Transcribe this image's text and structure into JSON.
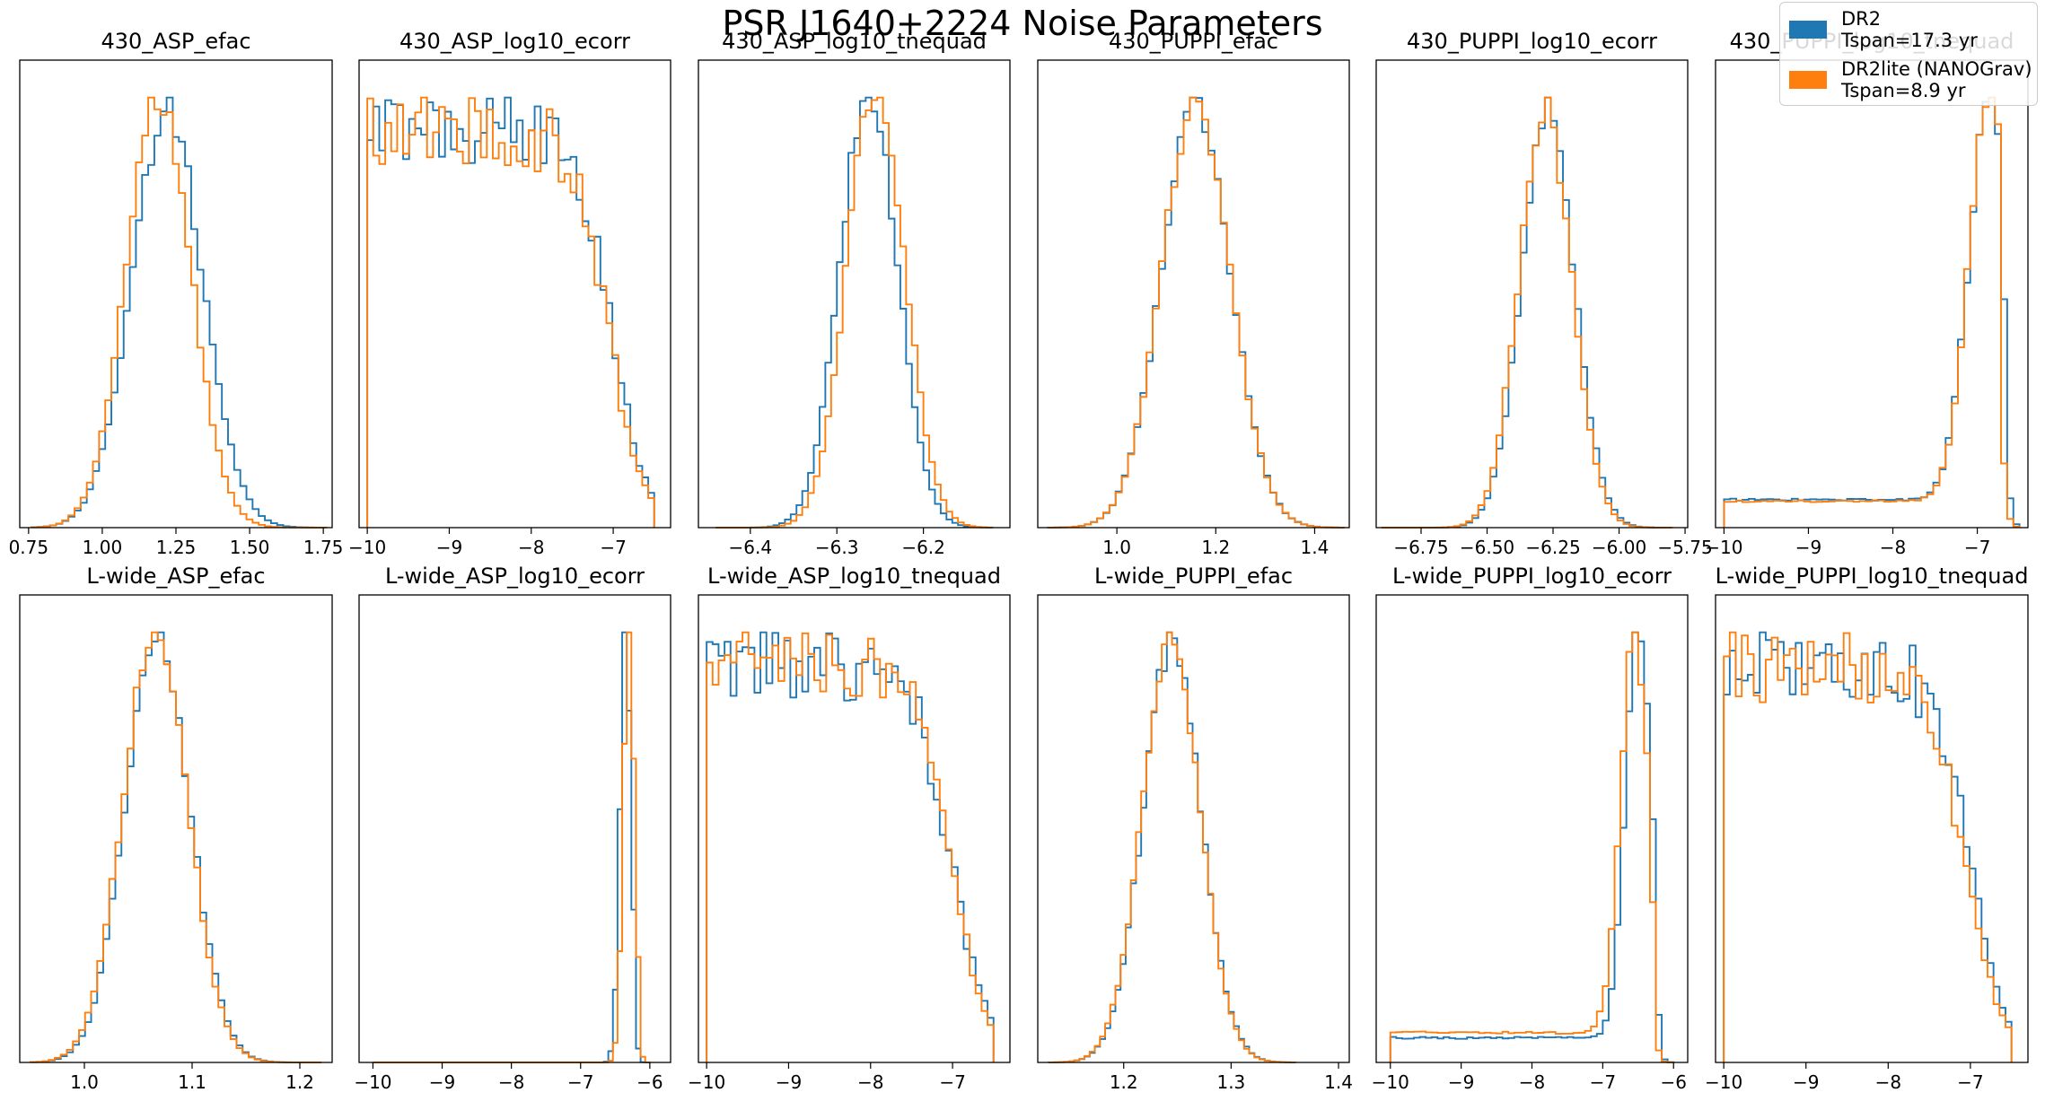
{
  "title": "PSR J1640+2224 Noise Parameters",
  "legend": [
    {
      "line1": "DR2",
      "line2": "Tspan=17.3 yr",
      "color": "#1f77b4"
    },
    {
      "line1": "DR2lite (NANOGrav)",
      "line2": "Tspan=8.9 yr",
      "color": "#ff7f0e"
    }
  ],
  "chart_data": [
    {
      "type": "histogram",
      "title": "430_ASP_efac",
      "xlim": [
        0.72,
        1.78
      ],
      "xticks": [
        0.75,
        1.0,
        1.25,
        1.5,
        1.75
      ],
      "xtick_labels": [
        "0.75",
        "1.00",
        "1.25",
        "1.50",
        "1.75"
      ],
      "shape": "gauss",
      "series": [
        {
          "name": "DR2",
          "center": 1.22,
          "width": 0.12,
          "bins": 48,
          "range": [
            0.76,
            1.76
          ]
        },
        {
          "name": "DR2lite (NANOGrav)",
          "center": 1.19,
          "width": 0.11,
          "bins": 48,
          "range": [
            0.76,
            1.76
          ]
        }
      ]
    },
    {
      "type": "histogram",
      "title": "430_ASP_log10_ecorr",
      "xlim": [
        -10.1,
        -6.3
      ],
      "xticks": [
        -10,
        -9,
        -8,
        -7
      ],
      "xtick_labels": [
        "−10",
        "−9",
        "−8",
        "−7"
      ],
      "shape": "plateau",
      "series": [
        {
          "name": "DR2",
          "low": -10,
          "cut": -7.0,
          "width": 0.2,
          "bins": 48,
          "range": [
            -10,
            -6.5
          ]
        },
        {
          "name": "DR2lite (NANOGrav)",
          "low": -10,
          "cut": -7.05,
          "width": 0.2,
          "bins": 48,
          "range": [
            -10,
            -6.5
          ]
        }
      ]
    },
    {
      "type": "histogram",
      "title": "430_ASP_log10_tnequad",
      "xlim": [
        -6.46,
        -6.1
      ],
      "xticks": [
        -6.4,
        -6.3,
        -6.2
      ],
      "xtick_labels": [
        "−6.4",
        "−6.3",
        "−6.2"
      ],
      "shape": "gauss",
      "series": [
        {
          "name": "DR2",
          "center": -6.263,
          "width": 0.033,
          "bins": 48,
          "range": [
            -6.44,
            -6.12
          ]
        },
        {
          "name": "DR2lite (NANOGrav)",
          "center": -6.255,
          "width": 0.033,
          "bins": 48,
          "range": [
            -6.44,
            -6.12
          ]
        }
      ]
    },
    {
      "type": "histogram",
      "title": "430_PUPPI_efac",
      "xlim": [
        0.84,
        1.47
      ],
      "xticks": [
        1.0,
        1.2,
        1.4
      ],
      "xtick_labels": [
        "1.0",
        "1.2",
        "1.4"
      ],
      "shape": "gauss",
      "series": [
        {
          "name": "DR2",
          "center": 1.16,
          "width": 0.07,
          "bins": 48,
          "range": [
            0.86,
            1.46
          ]
        },
        {
          "name": "DR2lite (NANOGrav)",
          "center": 1.16,
          "width": 0.07,
          "bins": 48,
          "range": [
            0.86,
            1.46
          ]
        }
      ]
    },
    {
      "type": "histogram",
      "title": "430_PUPPI_log10_ecorr",
      "xlim": [
        -6.92,
        -5.74
      ],
      "xticks": [
        -6.75,
        -6.5,
        -6.25,
        -6.0,
        -5.75
      ],
      "xtick_labels": [
        "−6.75",
        "−6.50",
        "−6.25",
        "−6.00",
        "−5.75"
      ],
      "shape": "gauss",
      "series": [
        {
          "name": "DR2",
          "center": -6.27,
          "width": 0.1,
          "bins": 48,
          "range": [
            -6.9,
            -5.8
          ]
        },
        {
          "name": "DR2lite (NANOGrav)",
          "center": -6.28,
          "width": 0.1,
          "bins": 48,
          "range": [
            -6.9,
            -5.8
          ]
        }
      ]
    },
    {
      "type": "histogram",
      "title": "430_PUPPI_log10_tnequad",
      "xlim": [
        -10.1,
        -6.4
      ],
      "xticks": [
        -10,
        -9,
        -8,
        -7
      ],
      "xtick_labels": [
        "−10",
        "−9",
        "−8",
        "−7"
      ],
      "shape": "rise",
      "series": [
        {
          "name": "DR2",
          "low": -10,
          "floor": 0.07,
          "peak": -6.85,
          "width": 0.25,
          "cut": -6.7,
          "bins": 48,
          "range": [
            -10,
            -6.5
          ]
        },
        {
          "name": "DR2lite (NANOGrav)",
          "low": -10,
          "floor": 0.065,
          "peak": -6.85,
          "width": 0.25,
          "cut": -6.75,
          "bins": 48,
          "range": [
            -10,
            -6.5
          ]
        }
      ]
    },
    {
      "type": "histogram",
      "title": "L-wide_ASP_efac",
      "xlim": [
        0.94,
        1.23
      ],
      "xticks": [
        1.0,
        1.1,
        1.2
      ],
      "xtick_labels": [
        "1.0",
        "1.1",
        "1.2"
      ],
      "shape": "gauss",
      "series": [
        {
          "name": "DR2",
          "center": 1.068,
          "width": 0.03,
          "bins": 48,
          "range": [
            0.95,
            1.22
          ]
        },
        {
          "name": "DR2lite (NANOGrav)",
          "center": 1.066,
          "width": 0.03,
          "bins": 48,
          "range": [
            0.95,
            1.22
          ]
        }
      ]
    },
    {
      "type": "histogram",
      "title": "L-wide_ASP_log10_ecorr",
      "xlim": [
        -10.2,
        -5.7
      ],
      "xticks": [
        -10,
        -9,
        -8,
        -7,
        -6
      ],
      "xtick_labels": [
        "−10",
        "−9",
        "−8",
        "−7",
        "−6"
      ],
      "shape": "spike",
      "series": [
        {
          "name": "DR2",
          "low": -10,
          "floor": 0,
          "peak": -6.35,
          "width": 0.08,
          "cut": -6.2,
          "bins": 60,
          "range": [
            -10,
            -6
          ]
        },
        {
          "name": "DR2lite (NANOGrav)",
          "low": -10,
          "floor": 0,
          "peak": -6.3,
          "width": 0.08,
          "cut": -6.15,
          "bins": 60,
          "range": [
            -10,
            -6
          ]
        }
      ]
    },
    {
      "type": "histogram",
      "title": "L-wide_ASP_log10_tnequad",
      "xlim": [
        -10.1,
        -6.3
      ],
      "xticks": [
        -10,
        -9,
        -8,
        -7
      ],
      "xtick_labels": [
        "−10",
        "−9",
        "−8",
        "−7"
      ],
      "shape": "plateau",
      "series": [
        {
          "name": "DR2",
          "low": -10,
          "cut": -7.0,
          "width": 0.22,
          "bins": 48,
          "range": [
            -10,
            -6.5
          ]
        },
        {
          "name": "DR2lite (NANOGrav)",
          "low": -10,
          "cut": -7.02,
          "width": 0.22,
          "bins": 48,
          "range": [
            -10,
            -6.5
          ]
        }
      ]
    },
    {
      "type": "histogram",
      "title": "L-wide_PUPPI_efac",
      "xlim": [
        1.12,
        1.41
      ],
      "xticks": [
        1.2,
        1.3,
        1.4
      ],
      "xtick_labels": [
        "1.2",
        "1.3",
        "1.4"
      ],
      "shape": "gauss",
      "series": [
        {
          "name": "DR2",
          "center": 1.245,
          "width": 0.027,
          "bins": 48,
          "range": [
            1.13,
            1.36
          ]
        },
        {
          "name": "DR2lite (NANOGrav)",
          "center": 1.244,
          "width": 0.027,
          "bins": 48,
          "range": [
            1.13,
            1.36
          ]
        }
      ]
    },
    {
      "type": "histogram",
      "title": "L-wide_PUPPI_log10_ecorr",
      "xlim": [
        -10.2,
        -5.8
      ],
      "xticks": [
        -10,
        -9,
        -8,
        -7,
        -6
      ],
      "xtick_labels": [
        "−10",
        "−9",
        "−8",
        "−7",
        "−6"
      ],
      "shape": "rise",
      "series": [
        {
          "name": "DR2",
          "low": -10,
          "floor": 0.06,
          "peak": -6.5,
          "width": 0.18,
          "cut": -6.25,
          "bins": 48,
          "range": [
            -10,
            -6
          ]
        },
        {
          "name": "DR2lite (NANOGrav)",
          "low": -10,
          "floor": 0.075,
          "peak": -6.55,
          "width": 0.2,
          "cut": -6.3,
          "bins": 48,
          "range": [
            -10,
            -6
          ]
        }
      ]
    },
    {
      "type": "histogram",
      "title": "L-wide_PUPPI_log10_tnequad",
      "xlim": [
        -10.1,
        -6.3
      ],
      "xticks": [
        -10,
        -9,
        -8,
        -7
      ],
      "xtick_labels": [
        "−10",
        "−9",
        "−8",
        "−7"
      ],
      "shape": "plateau",
      "series": [
        {
          "name": "DR2",
          "low": -10,
          "cut": -7.0,
          "width": 0.22,
          "bins": 48,
          "range": [
            -10,
            -6.5
          ]
        },
        {
          "name": "DR2lite (NANOGrav)",
          "low": -10,
          "cut": -7.05,
          "width": 0.22,
          "bins": 48,
          "range": [
            -10,
            -6.5
          ]
        }
      ]
    }
  ]
}
